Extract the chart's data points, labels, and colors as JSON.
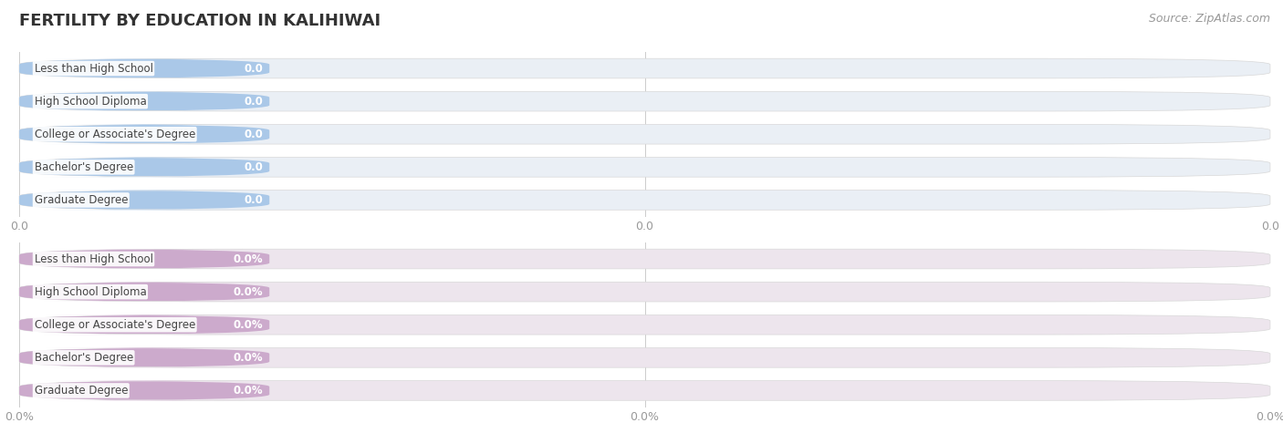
{
  "title": "FERTILITY BY EDUCATION IN KALIHIWAI",
  "source": "Source: ZipAtlas.com",
  "categories": [
    "Less than High School",
    "High School Diploma",
    "College or Associate's Degree",
    "Bachelor's Degree",
    "Graduate Degree"
  ],
  "values_top": [
    0.0,
    0.0,
    0.0,
    0.0,
    0.0
  ],
  "values_bottom": [
    0.0,
    0.0,
    0.0,
    0.0,
    0.0
  ],
  "bar_color_top": "#aac8e8",
  "bar_bg_color_top": "#eaeff5",
  "bar_color_bottom": "#ccaacc",
  "bar_bg_color_bottom": "#ede5ed",
  "value_label_top": [
    "0.0",
    "0.0",
    "0.0",
    "0.0",
    "0.0"
  ],
  "value_label_bottom": [
    "0.0%",
    "0.0%",
    "0.0%",
    "0.0%",
    "0.0%"
  ],
  "xtick_labels_top": [
    "0.0",
    "0.0",
    "0.0"
  ],
  "xtick_labels_bottom": [
    "0.0%",
    "0.0%",
    "0.0%"
  ],
  "background_color": "#ffffff",
  "title_fontsize": 13,
  "tick_fontsize": 9,
  "source_fontsize": 9,
  "bar_label_fontsize": 8.5,
  "value_label_fontsize": 8.5
}
